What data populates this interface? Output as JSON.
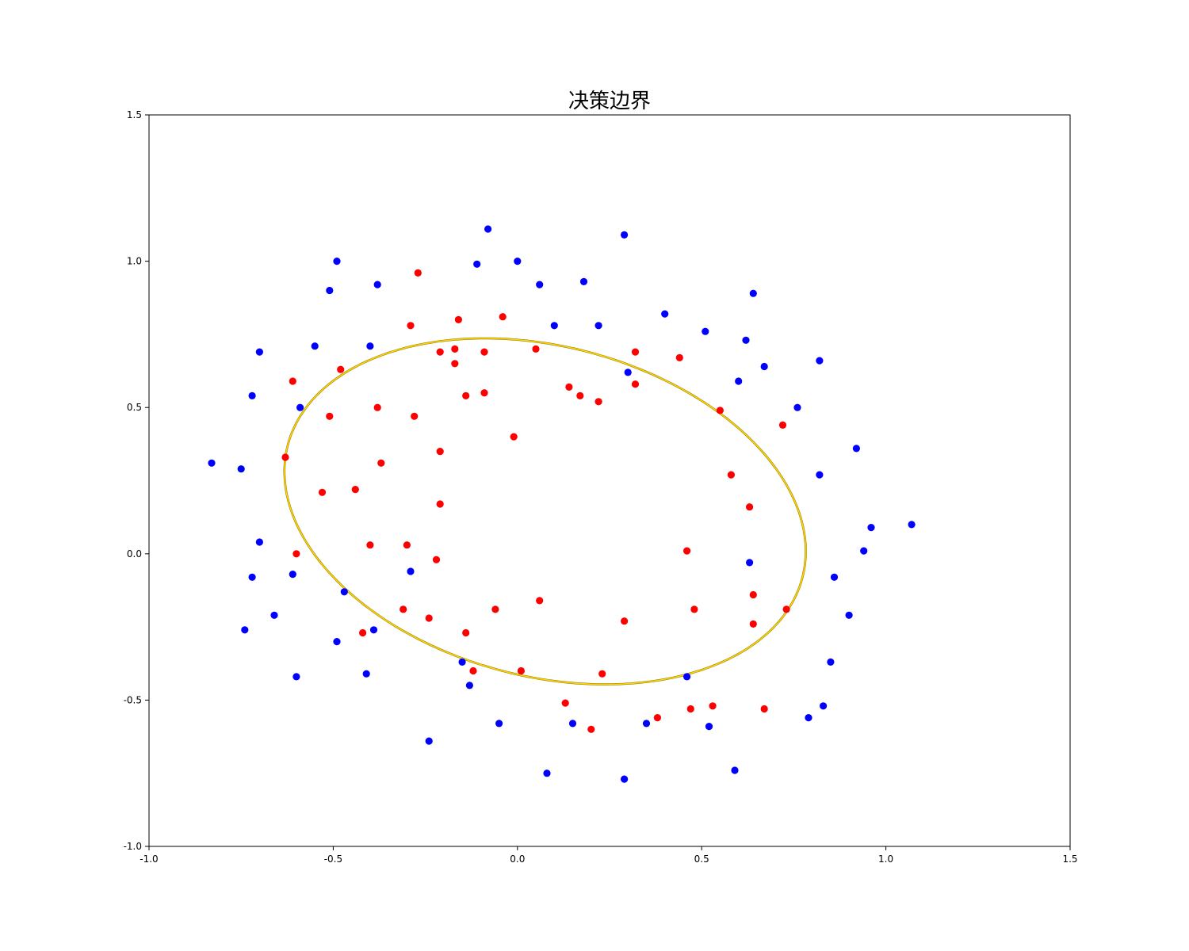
{
  "chart_data": {
    "type": "scatter",
    "title": "决策边界",
    "xlabel": "",
    "ylabel": "",
    "xlim": [
      -1.0,
      1.5
    ],
    "ylim": [
      -1.0,
      1.5
    ],
    "x_ticks": [
      "-1.0",
      "-0.5",
      "0.0",
      "0.5",
      "1.0",
      "1.5"
    ],
    "y_ticks": [
      "-1.0",
      "-0.5",
      "0.0",
      "0.5",
      "1.0",
      "1.5"
    ],
    "grid": false,
    "colors": {
      "class_1": "#ff0000",
      "class_0": "#0000ff",
      "boundary": "#ffd700"
    },
    "series": [
      {
        "class": "1",
        "color": "#ff0000",
        "points": [
          [
            -0.27,
            0.96
          ],
          [
            -0.29,
            0.78
          ],
          [
            -0.16,
            0.8
          ],
          [
            -0.04,
            0.81
          ],
          [
            -0.21,
            0.69
          ],
          [
            -0.17,
            0.7
          ],
          [
            -0.09,
            0.69
          ],
          [
            -0.17,
            0.65
          ],
          [
            0.05,
            0.7
          ],
          [
            -0.61,
            0.59
          ],
          [
            -0.48,
            0.63
          ],
          [
            -0.14,
            0.54
          ],
          [
            -0.09,
            0.55
          ],
          [
            0.14,
            0.57
          ],
          [
            0.17,
            0.54
          ],
          [
            0.22,
            0.52
          ],
          [
            0.32,
            0.69
          ],
          [
            0.32,
            0.58
          ],
          [
            0.44,
            0.67
          ],
          [
            0.55,
            0.49
          ],
          [
            0.72,
            0.44
          ],
          [
            -0.51,
            0.47
          ],
          [
            -0.38,
            0.5
          ],
          [
            -0.28,
            0.47
          ],
          [
            -0.01,
            0.4
          ],
          [
            -0.63,
            0.33
          ],
          [
            -0.37,
            0.31
          ],
          [
            -0.21,
            0.35
          ],
          [
            -0.53,
            0.21
          ],
          [
            -0.44,
            0.22
          ],
          [
            -0.21,
            0.17
          ],
          [
            0.58,
            0.27
          ],
          [
            0.63,
            0.16
          ],
          [
            -0.6,
            0.0
          ],
          [
            -0.4,
            0.03
          ],
          [
            -0.3,
            0.03
          ],
          [
            -0.22,
            -0.02
          ],
          [
            0.46,
            0.01
          ],
          [
            -0.31,
            -0.19
          ],
          [
            -0.24,
            -0.22
          ],
          [
            -0.06,
            -0.19
          ],
          [
            0.06,
            -0.16
          ],
          [
            0.29,
            -0.23
          ],
          [
            0.48,
            -0.19
          ],
          [
            0.64,
            -0.14
          ],
          [
            0.73,
            -0.19
          ],
          [
            -0.42,
            -0.27
          ],
          [
            -0.14,
            -0.27
          ],
          [
            0.64,
            -0.24
          ],
          [
            -0.12,
            -0.4
          ],
          [
            0.01,
            -0.4
          ],
          [
            0.23,
            -0.41
          ],
          [
            0.13,
            -0.51
          ],
          [
            0.47,
            -0.53
          ],
          [
            0.53,
            -0.52
          ],
          [
            0.67,
            -0.53
          ],
          [
            0.38,
            -0.56
          ],
          [
            0.2,
            -0.6
          ]
        ]
      },
      {
        "class": "0",
        "color": "#0000ff",
        "points": [
          [
            -0.08,
            1.11
          ],
          [
            0.29,
            1.09
          ],
          [
            -0.49,
            1.0
          ],
          [
            -0.11,
            0.99
          ],
          [
            0.0,
            1.0
          ],
          [
            -0.51,
            0.9
          ],
          [
            -0.38,
            0.92
          ],
          [
            0.06,
            0.92
          ],
          [
            0.18,
            0.93
          ],
          [
            0.64,
            0.89
          ],
          [
            0.4,
            0.82
          ],
          [
            0.1,
            0.78
          ],
          [
            0.22,
            0.78
          ],
          [
            0.51,
            0.76
          ],
          [
            0.62,
            0.73
          ],
          [
            -0.55,
            0.71
          ],
          [
            -0.4,
            0.71
          ],
          [
            -0.7,
            0.69
          ],
          [
            0.82,
            0.66
          ],
          [
            0.67,
            0.64
          ],
          [
            0.3,
            0.62
          ],
          [
            0.6,
            0.59
          ],
          [
            -0.72,
            0.54
          ],
          [
            -0.59,
            0.5
          ],
          [
            0.76,
            0.5
          ],
          [
            0.92,
            0.36
          ],
          [
            -0.83,
            0.31
          ],
          [
            -0.75,
            0.29
          ],
          [
            0.82,
            0.27
          ],
          [
            1.07,
            0.1
          ],
          [
            0.96,
            0.09
          ],
          [
            0.94,
            0.01
          ],
          [
            -0.7,
            0.04
          ],
          [
            -0.72,
            -0.08
          ],
          [
            -0.61,
            -0.07
          ],
          [
            -0.29,
            -0.06
          ],
          [
            0.63,
            -0.03
          ],
          [
            0.86,
            -0.08
          ],
          [
            -0.47,
            -0.13
          ],
          [
            -0.66,
            -0.21
          ],
          [
            0.9,
            -0.21
          ],
          [
            -0.74,
            -0.26
          ],
          [
            -0.39,
            -0.26
          ],
          [
            -0.49,
            -0.3
          ],
          [
            -0.15,
            -0.37
          ],
          [
            0.85,
            -0.37
          ],
          [
            -0.41,
            -0.41
          ],
          [
            -0.6,
            -0.42
          ],
          [
            0.46,
            -0.42
          ],
          [
            -0.13,
            -0.45
          ],
          [
            0.83,
            -0.52
          ],
          [
            0.79,
            -0.56
          ],
          [
            -0.05,
            -0.58
          ],
          [
            0.15,
            -0.58
          ],
          [
            0.35,
            -0.58
          ],
          [
            0.52,
            -0.59
          ],
          [
            -0.24,
            -0.64
          ],
          [
            0.59,
            -0.74
          ],
          [
            0.08,
            -0.75
          ],
          [
            0.29,
            -0.77
          ]
        ]
      }
    ],
    "boundary": {
      "type": "ellipse",
      "center": [
        0.075,
        0.145
      ],
      "semi_axes": [
        0.74,
        0.55
      ],
      "rotation_deg": -26,
      "color": "#ffd700"
    }
  }
}
